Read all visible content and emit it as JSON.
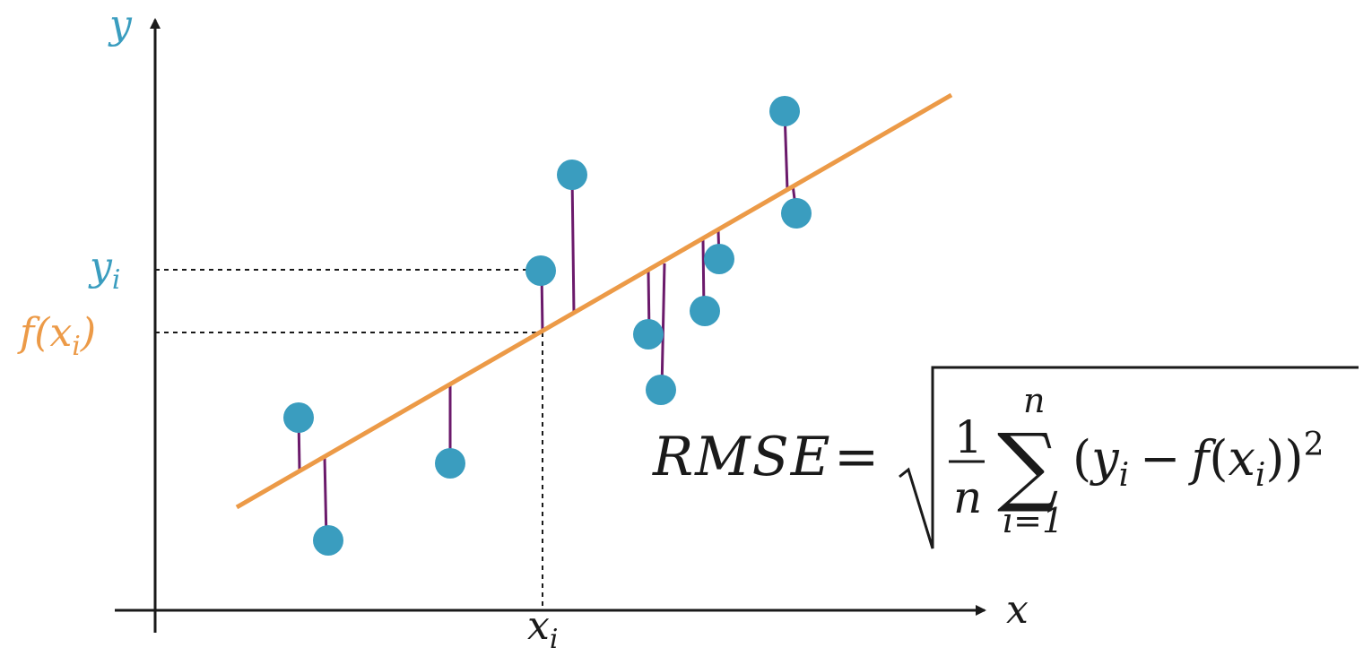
{
  "diagram": {
    "axes": {
      "x_label": "x",
      "y_label": "y"
    },
    "ticks": {
      "x_tick": "x",
      "x_tick_sub": "i",
      "y_tick": "y",
      "y_tick_sub": "i",
      "f_tick_open": "f(",
      "f_tick_x": "x",
      "f_tick_sub": "i",
      "f_tick_close": ")"
    },
    "formula": {
      "lhs": "RMSE",
      "equals": "=",
      "frac_num": "1",
      "frac_den": "n",
      "sum_symbol": "∑",
      "sum_upper": "n",
      "sum_lower": "i=1",
      "term_open": "(",
      "term_y": "y",
      "term_y_sub": "i",
      "term_minus": "−",
      "term_f": "f",
      "term_paren_open": "(",
      "term_x": "x",
      "term_x_sub": "i",
      "term_close": "))",
      "exponent": "2"
    },
    "colors": {
      "point": "#3a9dbf",
      "regression_line": "#ec9a47",
      "residual": "#6b1a6b",
      "axis": "#1a1a1a",
      "y_label_color": "#3a9dbf",
      "f_label_color": "#ec9a47",
      "text": "#1a1a1a"
    }
  }
}
